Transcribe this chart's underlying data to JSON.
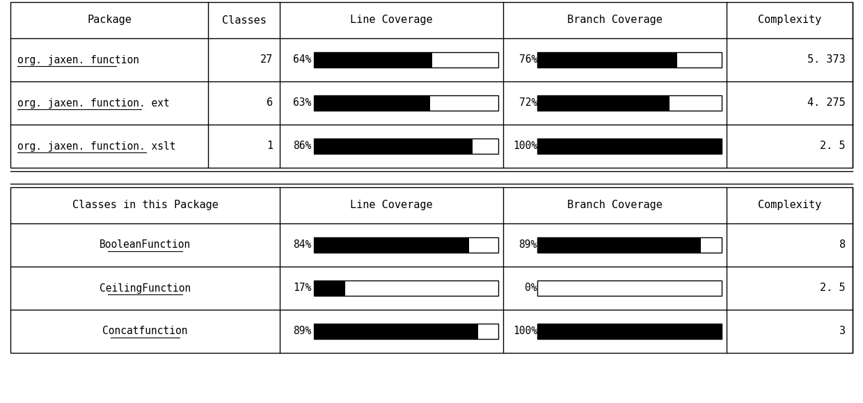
{
  "background_color": "#ffffff",
  "top_table": {
    "headers": [
      "Package",
      "Classes",
      "Line Coverage",
      "Branch Coverage",
      "Complexity"
    ],
    "rows": [
      {
        "package": "org. jaxen. function",
        "classes": "27",
        "line_pct": 64,
        "line_label": "64%",
        "branch_pct": 76,
        "branch_label": "76%",
        "complexity": "5. 373"
      },
      {
        "package": "org. jaxen. function. ext",
        "classes": "6",
        "line_pct": 63,
        "line_label": "63%",
        "branch_pct": 72,
        "branch_label": "72%",
        "complexity": "4. 275"
      },
      {
        "package": "org. jaxen. function. xslt",
        "classes": "1",
        "line_pct": 86,
        "line_label": "86%",
        "branch_pct": 100,
        "branch_label": "100%",
        "complexity": "2. 5"
      }
    ]
  },
  "bottom_table": {
    "headers": [
      "Classes in this Package",
      "Line Coverage",
      "Branch Coverage",
      "Complexity"
    ],
    "rows": [
      {
        "class_name": "BooleanFunction",
        "line_pct": 84,
        "line_label": "84%",
        "branch_pct": 89,
        "branch_label": "89%",
        "complexity": "8"
      },
      {
        "class_name": "CeilingFunction",
        "line_pct": 17,
        "line_label": "17%",
        "branch_pct": 0,
        "branch_label": "0%",
        "complexity": "2. 5"
      },
      {
        "class_name": "Concatfunction",
        "line_pct": 89,
        "line_label": "89%",
        "branch_pct": 100,
        "branch_label": "100%",
        "complexity": "3"
      }
    ]
  }
}
